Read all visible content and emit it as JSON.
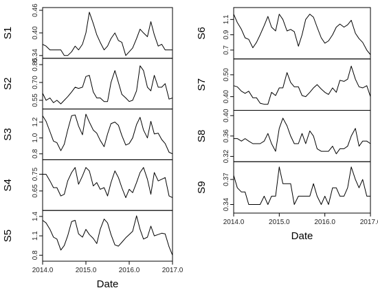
{
  "chart_data": [
    {
      "type": "line",
      "series_count": 5,
      "xlabel": "Date",
      "x_ticks": [
        "2014.0",
        "2015.0",
        "2016.0",
        "2017.0"
      ],
      "xlim": [
        2014.0,
        2017.0
      ],
      "grid": false,
      "legend": "none",
      "panels": [
        {
          "name": "S1",
          "ylim": [
            0.34,
            0.46
          ],
          "yticks": [
            0.34,
            0.4,
            0.46
          ],
          "x": [
            2014.0,
            2014.08,
            2014.17,
            2014.25,
            2014.33,
            2014.42,
            2014.5,
            2014.58,
            2014.67,
            2014.75,
            2014.83,
            2014.92,
            2015.0,
            2015.08,
            2015.17,
            2015.25,
            2015.33,
            2015.42,
            2015.5,
            2015.58,
            2015.67,
            2015.75,
            2015.83,
            2015.92,
            2016.0,
            2016.08,
            2016.17,
            2016.25,
            2016.33,
            2016.42,
            2016.5,
            2016.58,
            2016.67,
            2016.75,
            2016.83,
            2016.92,
            2017.0
          ],
          "values": [
            0.37,
            0.365,
            0.355,
            0.355,
            0.355,
            0.355,
            0.34,
            0.34,
            0.35,
            0.365,
            0.355,
            0.37,
            0.4,
            0.455,
            0.425,
            0.395,
            0.375,
            0.355,
            0.365,
            0.385,
            0.4,
            0.38,
            0.375,
            0.34,
            0.35,
            0.36,
            0.385,
            0.41,
            0.4,
            0.39,
            0.43,
            0.395,
            0.365,
            0.37,
            0.355,
            0.355,
            0.355
          ]
        },
        {
          "name": "S2",
          "ylim": [
            0.5,
            0.88
          ],
          "yticks": [
            0.55,
            0.7,
            0.85
          ],
          "x": [
            2014.0,
            2014.08,
            2014.17,
            2014.25,
            2014.33,
            2014.42,
            2014.5,
            2014.58,
            2014.67,
            2014.75,
            2014.83,
            2014.92,
            2015.0,
            2015.08,
            2015.17,
            2015.25,
            2015.33,
            2015.42,
            2015.5,
            2015.58,
            2015.67,
            2015.75,
            2015.83,
            2015.92,
            2016.0,
            2016.08,
            2016.17,
            2016.25,
            2016.33,
            2016.42,
            2016.5,
            2016.58,
            2016.67,
            2016.75,
            2016.83,
            2016.92,
            2017.0
          ],
          "values": [
            0.61,
            0.55,
            0.57,
            0.53,
            0.55,
            0.52,
            0.55,
            0.58,
            0.62,
            0.66,
            0.65,
            0.66,
            0.75,
            0.76,
            0.62,
            0.57,
            0.57,
            0.54,
            0.54,
            0.7,
            0.8,
            0.7,
            0.6,
            0.57,
            0.54,
            0.55,
            0.63,
            0.84,
            0.8,
            0.66,
            0.63,
            0.76,
            0.66,
            0.66,
            0.69,
            0.56,
            0.57
          ]
        },
        {
          "name": "S3",
          "ylim": [
            0.76,
            1.33
          ],
          "yticks": [
            0.8,
            1.0,
            1.2
          ],
          "x": [
            2014.0,
            2014.08,
            2014.17,
            2014.25,
            2014.33,
            2014.42,
            2014.5,
            2014.58,
            2014.67,
            2014.75,
            2014.83,
            2014.92,
            2015.0,
            2015.08,
            2015.17,
            2015.25,
            2015.33,
            2015.42,
            2015.5,
            2015.58,
            2015.67,
            2015.75,
            2015.83,
            2015.92,
            2016.0,
            2016.08,
            2016.17,
            2016.25,
            2016.33,
            2016.42,
            2016.5,
            2016.58,
            2016.67,
            2016.75,
            2016.83,
            2016.92,
            2017.0
          ],
          "values": [
            1.28,
            1.21,
            1.08,
            0.96,
            0.94,
            0.84,
            0.92,
            1.1,
            1.28,
            1.29,
            1.15,
            1.04,
            1.3,
            1.2,
            1.1,
            1.06,
            0.97,
            0.89,
            1.05,
            1.18,
            1.2,
            1.16,
            1.03,
            0.91,
            0.93,
            1.0,
            1.17,
            1.26,
            1.1,
            1.0,
            1.21,
            1.05,
            1.06,
            0.98,
            0.93,
            0.82,
            0.8
          ]
        },
        {
          "name": "S4",
          "ylim": [
            0.55,
            0.82
          ],
          "yticks": [
            0.65,
            0.75
          ],
          "x": [
            2014.0,
            2014.08,
            2014.17,
            2014.25,
            2014.33,
            2014.42,
            2014.5,
            2014.58,
            2014.67,
            2014.75,
            2014.83,
            2014.92,
            2015.0,
            2015.08,
            2015.17,
            2015.25,
            2015.33,
            2015.42,
            2015.5,
            2015.58,
            2015.67,
            2015.75,
            2015.83,
            2015.92,
            2016.0,
            2016.08,
            2016.17,
            2016.25,
            2016.33,
            2016.42,
            2016.5,
            2016.58,
            2016.67,
            2016.75,
            2016.83,
            2016.92,
            2017.0
          ],
          "values": [
            0.75,
            0.75,
            0.71,
            0.67,
            0.67,
            0.62,
            0.63,
            0.71,
            0.76,
            0.79,
            0.69,
            0.74,
            0.79,
            0.77,
            0.68,
            0.7,
            0.66,
            0.67,
            0.62,
            0.7,
            0.77,
            0.73,
            0.67,
            0.61,
            0.66,
            0.64,
            0.7,
            0.76,
            0.79,
            0.72,
            0.63,
            0.76,
            0.71,
            0.72,
            0.73,
            0.62,
            0.61
          ]
        },
        {
          "name": "S5",
          "ylim": [
            0.75,
            1.45
          ],
          "yticks": [
            0.8,
            1.1,
            1.4
          ],
          "x": [
            2014.0,
            2014.08,
            2014.17,
            2014.25,
            2014.33,
            2014.42,
            2014.5,
            2014.58,
            2014.67,
            2014.75,
            2014.83,
            2014.92,
            2015.0,
            2015.08,
            2015.17,
            2015.25,
            2015.33,
            2015.42,
            2015.5,
            2015.58,
            2015.67,
            2015.75,
            2015.83,
            2015.92,
            2016.0,
            2016.08,
            2016.17,
            2016.25,
            2016.33,
            2016.42,
            2016.5,
            2016.58,
            2016.67,
            2016.75,
            2016.83,
            2016.92,
            2017.0
          ],
          "values": [
            1.34,
            1.3,
            1.2,
            1.08,
            1.05,
            0.88,
            0.95,
            1.1,
            1.32,
            1.34,
            1.13,
            1.08,
            1.2,
            1.12,
            1.06,
            0.98,
            1.2,
            1.36,
            1.3,
            1.12,
            0.96,
            0.94,
            1.0,
            1.07,
            1.12,
            1.17,
            1.41,
            1.2,
            1.05,
            1.08,
            1.25,
            1.1,
            1.12,
            1.14,
            1.13,
            0.93,
            0.8
          ]
        }
      ]
    },
    {
      "type": "line",
      "series_count": 4,
      "xlabel": "Date",
      "x_ticks": [
        "2014.0",
        "2015.0",
        "2016.0",
        "2017.0"
      ],
      "xlim": [
        2014.0,
        2017.0
      ],
      "grid": false,
      "legend": "none",
      "panels": [
        {
          "name": "S6",
          "ylim": [
            0.62,
            1.22
          ],
          "yticks": [
            0.7,
            0.9,
            1.1
          ],
          "x": [
            2014.0,
            2014.08,
            2014.17,
            2014.25,
            2014.33,
            2014.42,
            2014.5,
            2014.58,
            2014.67,
            2014.75,
            2014.83,
            2014.92,
            2015.0,
            2015.08,
            2015.17,
            2015.25,
            2015.33,
            2015.42,
            2015.5,
            2015.58,
            2015.67,
            2015.75,
            2015.83,
            2015.92,
            2016.0,
            2016.08,
            2016.17,
            2016.25,
            2016.33,
            2016.42,
            2016.5,
            2016.58,
            2016.67,
            2016.75,
            2016.83,
            2016.92,
            2017.0
          ],
          "values": [
            1.17,
            1.06,
            0.97,
            0.86,
            0.84,
            0.73,
            0.8,
            0.9,
            1.02,
            1.14,
            1.0,
            0.95,
            1.17,
            1.1,
            0.95,
            0.97,
            0.94,
            0.75,
            0.9,
            1.1,
            1.17,
            1.13,
            1.0,
            0.86,
            0.79,
            0.82,
            0.9,
            1.0,
            1.04,
            1.0,
            1.03,
            1.09,
            0.92,
            0.85,
            0.8,
            0.7,
            0.64
          ]
        },
        {
          "name": "S7",
          "ylim": [
            0.35,
            0.56
          ],
          "yticks": [
            0.4,
            0.5
          ],
          "x": [
            2014.0,
            2014.08,
            2014.17,
            2014.25,
            2014.33,
            2014.42,
            2014.5,
            2014.58,
            2014.67,
            2014.75,
            2014.83,
            2014.92,
            2015.0,
            2015.08,
            2015.17,
            2015.25,
            2015.33,
            2015.42,
            2015.5,
            2015.58,
            2015.67,
            2015.75,
            2015.83,
            2015.92,
            2016.0,
            2016.08,
            2016.17,
            2016.25,
            2016.33,
            2016.42,
            2016.5,
            2016.58,
            2016.67,
            2016.75,
            2016.83,
            2016.92,
            2017.0
          ],
          "values": [
            0.45,
            0.445,
            0.425,
            0.415,
            0.425,
            0.395,
            0.395,
            0.37,
            0.365,
            0.365,
            0.42,
            0.405,
            0.44,
            0.44,
            0.51,
            0.465,
            0.445,
            0.445,
            0.405,
            0.4,
            0.42,
            0.44,
            0.455,
            0.435,
            0.42,
            0.41,
            0.44,
            0.42,
            0.475,
            0.47,
            0.48,
            0.54,
            0.48,
            0.445,
            0.44,
            0.45,
            0.4
          ]
        },
        {
          "name": "S8",
          "ylim": [
            0.315,
            0.405
          ],
          "yticks": [
            0.32,
            0.36,
            0.4
          ],
          "x": [
            2014.0,
            2014.08,
            2014.17,
            2014.25,
            2014.33,
            2014.42,
            2014.5,
            2014.58,
            2014.67,
            2014.75,
            2014.83,
            2014.92,
            2015.0,
            2015.08,
            2015.17,
            2015.25,
            2015.33,
            2015.42,
            2015.5,
            2015.58,
            2015.67,
            2015.75,
            2015.83,
            2015.92,
            2016.0,
            2016.08,
            2016.17,
            2016.25,
            2016.33,
            2016.42,
            2016.5,
            2016.58,
            2016.67,
            2016.75,
            2016.83,
            2016.92,
            2017.0
          ],
          "values": [
            0.355,
            0.355,
            0.35,
            0.355,
            0.35,
            0.345,
            0.345,
            0.345,
            0.35,
            0.365,
            0.345,
            0.33,
            0.375,
            0.395,
            0.38,
            0.36,
            0.345,
            0.345,
            0.365,
            0.345,
            0.37,
            0.36,
            0.335,
            0.33,
            0.33,
            0.33,
            0.34,
            0.325,
            0.335,
            0.335,
            0.34,
            0.36,
            0.375,
            0.34,
            0.35,
            0.35,
            0.345
          ]
        },
        {
          "name": "S9",
          "ylim": [
            0.333,
            0.388
          ],
          "yticks": [
            0.34,
            0.37
          ],
          "x": [
            2014.0,
            2014.08,
            2014.17,
            2014.25,
            2014.33,
            2014.42,
            2014.5,
            2014.58,
            2014.67,
            2014.75,
            2014.83,
            2014.92,
            2015.0,
            2015.08,
            2015.17,
            2015.25,
            2015.33,
            2015.42,
            2015.5,
            2015.58,
            2015.67,
            2015.75,
            2015.83,
            2015.92,
            2016.0,
            2016.08,
            2016.17,
            2016.25,
            2016.33,
            2016.42,
            2016.5,
            2016.58,
            2016.67,
            2016.75,
            2016.83,
            2016.92,
            2017.0
          ],
          "values": [
            0.375,
            0.36,
            0.355,
            0.355,
            0.34,
            0.34,
            0.34,
            0.34,
            0.35,
            0.34,
            0.35,
            0.35,
            0.385,
            0.365,
            0.365,
            0.365,
            0.34,
            0.35,
            0.35,
            0.35,
            0.35,
            0.365,
            0.35,
            0.34,
            0.35,
            0.34,
            0.36,
            0.36,
            0.35,
            0.35,
            0.36,
            0.385,
            0.37,
            0.36,
            0.37,
            0.35,
            0.35
          ]
        }
      ]
    }
  ]
}
